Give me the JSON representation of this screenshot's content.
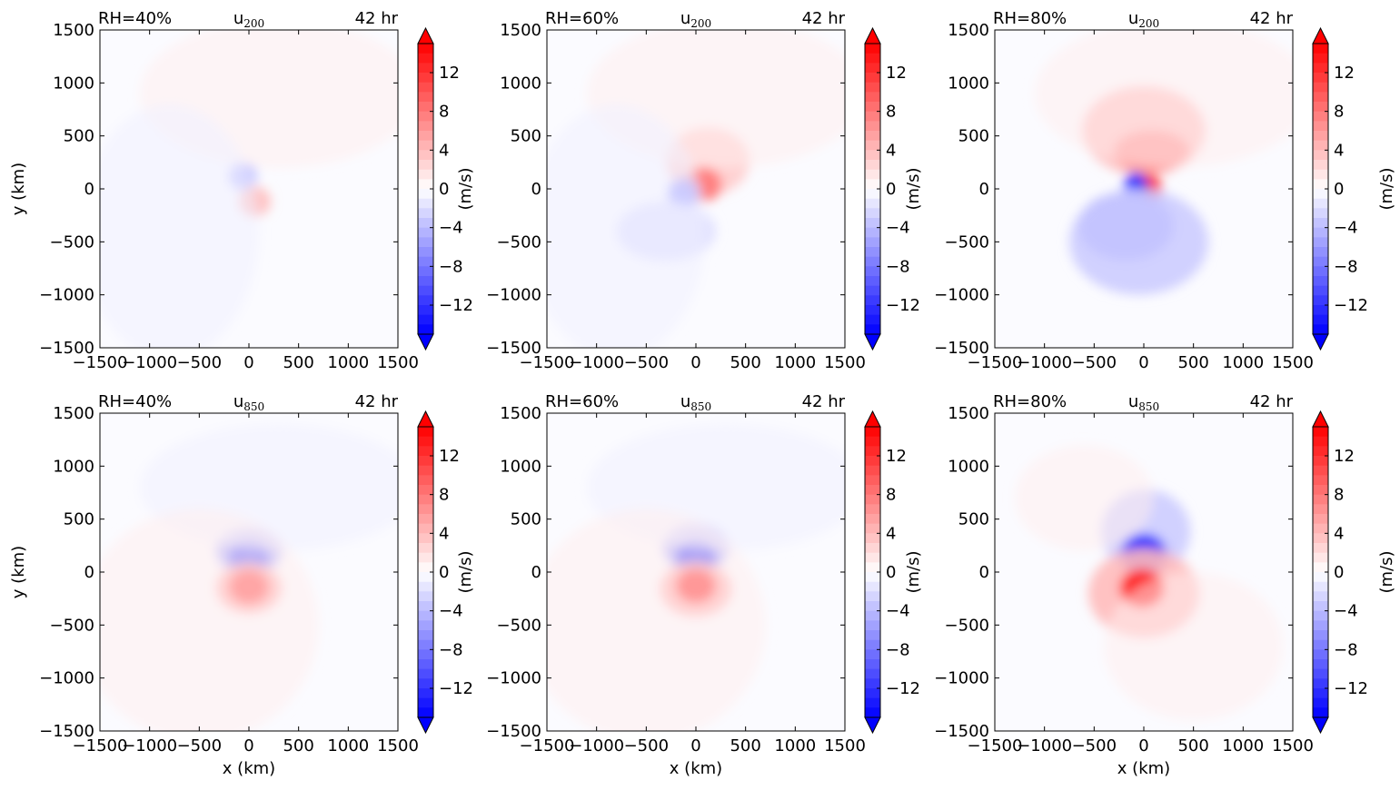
{
  "colors": {
    "positive": "#ff0000",
    "negative": "#0000ff",
    "zero": "#ffffff",
    "axis": "#000000"
  },
  "chart_data": [
    {
      "type": "heatmap",
      "panel": "top-left",
      "title_left": "RH=40%",
      "title_center": "u",
      "title_center_sub": "200",
      "title_right": "42 hr",
      "xlabel": "",
      "ylabel": "y (km)",
      "xlim": [
        -1500,
        1500
      ],
      "ylim": [
        -1500,
        1500
      ],
      "xticks": [
        "−1500",
        "−1000",
        "−500",
        "0",
        "500",
        "1000",
        "1500"
      ],
      "yticks": [
        "1500",
        "1000",
        "500",
        "0",
        "−500",
        "−1000",
        "−1500"
      ],
      "colorbar": {
        "ticks": [
          "12",
          "8",
          "4",
          "0",
          "−4",
          "−8",
          "−12"
        ],
        "label": "",
        "range": [
          -15,
          15
        ],
        "extend": "both"
      },
      "features": [
        {
          "x": -60,
          "y": 120,
          "rx": 140,
          "ry": 130,
          "value": -4
        },
        {
          "x": 60,
          "y": -120,
          "rx": 160,
          "ry": 140,
          "value": 4
        },
        {
          "x": 300,
          "y": 900,
          "rx": 1400,
          "ry": 700,
          "value": 1
        },
        {
          "x": -800,
          "y": -400,
          "rx": 900,
          "ry": 1200,
          "value": -0.8
        }
      ]
    },
    {
      "type": "heatmap",
      "panel": "top-middle",
      "title_left": "RH=60%",
      "title_center": "u",
      "title_center_sub": "200",
      "title_right": "42 hr",
      "xlabel": "",
      "ylabel": "(m/s)",
      "xlim": [
        -1500,
        1500
      ],
      "ylim": [
        -1500,
        1500
      ],
      "xticks": [
        "−1500",
        "−1000",
        "−500",
        "0",
        "500",
        "1000",
        "1500"
      ],
      "yticks": [
        "1500",
        "1000",
        "500",
        "0",
        "−500",
        "−1000",
        "−1500"
      ],
      "colorbar": {
        "ticks": [
          "12",
          "8",
          "4",
          "0",
          "−4",
          "−8",
          "−12"
        ],
        "label": "",
        "range": [
          -15,
          15
        ],
        "extend": "both"
      },
      "features": [
        {
          "x": 120,
          "y": 260,
          "rx": 420,
          "ry": 320,
          "value": 3
        },
        {
          "x": 80,
          "y": 40,
          "rx": 180,
          "ry": 160,
          "value": 8
        },
        {
          "x": -120,
          "y": -40,
          "rx": 160,
          "ry": 140,
          "value": -6
        },
        {
          "x": -300,
          "y": -400,
          "rx": 500,
          "ry": 280,
          "value": -2
        },
        {
          "x": 300,
          "y": 900,
          "rx": 1400,
          "ry": 700,
          "value": 1
        },
        {
          "x": -800,
          "y": -400,
          "rx": 900,
          "ry": 1200,
          "value": -0.8
        }
      ]
    },
    {
      "type": "heatmap",
      "panel": "top-right",
      "title_left": "RH=80%",
      "title_center": "u",
      "title_center_sub": "200",
      "title_right": "42 hr",
      "xlabel": "",
      "ylabel": "(m/s)",
      "xlim": [
        -1500,
        1500
      ],
      "ylim": [
        -1500,
        1500
      ],
      "xticks": [
        "−1500",
        "−1000",
        "−500",
        "0",
        "500",
        "1000",
        "1500"
      ],
      "yticks": [
        "1500",
        "1000",
        "500",
        "0",
        "−500",
        "−1000",
        "−1500"
      ],
      "colorbar": {
        "ticks": [
          "12",
          "8",
          "4",
          "0",
          "−4",
          "−8",
          "−12"
        ],
        "label": "(m/s)",
        "range": [
          -15,
          15
        ],
        "extend": "both"
      },
      "features": [
        {
          "x": 0,
          "y": 550,
          "rx": 620,
          "ry": 420,
          "value": 4
        },
        {
          "x": 80,
          "y": 350,
          "rx": 380,
          "ry": 200,
          "value": 7
        },
        {
          "x": 60,
          "y": 0,
          "rx": 120,
          "ry": 140,
          "value": 15
        },
        {
          "x": -80,
          "y": 20,
          "rx": 120,
          "ry": 140,
          "value": -15
        },
        {
          "x": -180,
          "y": -350,
          "rx": 480,
          "ry": 320,
          "value": -8
        },
        {
          "x": -50,
          "y": -500,
          "rx": 700,
          "ry": 500,
          "value": -3
        },
        {
          "x": 300,
          "y": 900,
          "rx": 1400,
          "ry": 700,
          "value": 1
        }
      ]
    },
    {
      "type": "heatmap",
      "panel": "bottom-left",
      "title_left": "RH=40%",
      "title_center": "u",
      "title_center_sub": "850",
      "title_right": "42 hr",
      "xlabel": "x (km)",
      "ylabel": "y (km)",
      "xlim": [
        -1500,
        1500
      ],
      "ylim": [
        -1500,
        1500
      ],
      "xticks": [
        "−1500",
        "−1000",
        "−500",
        "0",
        "500",
        "1000",
        "1500"
      ],
      "yticks": [
        "1500",
        "1000",
        "500",
        "0",
        "−500",
        "−1000",
        "−1500"
      ],
      "colorbar": {
        "ticks": [
          "12",
          "8",
          "4",
          "0",
          "−4",
          "−8",
          "−12"
        ],
        "label": "",
        "range": [
          -15,
          15
        ],
        "extend": "both"
      },
      "features": [
        {
          "x": 0,
          "y": 200,
          "rx": 330,
          "ry": 220,
          "value": -5
        },
        {
          "x": 0,
          "y": 150,
          "rx": 200,
          "ry": 150,
          "value": -10
        },
        {
          "x": 0,
          "y": -150,
          "rx": 330,
          "ry": 240,
          "value": 5
        },
        {
          "x": 0,
          "y": -140,
          "rx": 200,
          "ry": 160,
          "value": 11
        },
        {
          "x": 300,
          "y": 800,
          "rx": 1400,
          "ry": 600,
          "value": -0.8
        },
        {
          "x": -500,
          "y": -500,
          "rx": 1200,
          "ry": 1100,
          "value": 1
        }
      ]
    },
    {
      "type": "heatmap",
      "panel": "bottom-middle",
      "title_left": "RH=60%",
      "title_center": "u",
      "title_center_sub": "850",
      "title_right": "42 hr",
      "xlabel": "x (km)",
      "ylabel": "(m/s)",
      "xlim": [
        -1500,
        1500
      ],
      "ylim": [
        -1500,
        1500
      ],
      "xticks": [
        "−1500",
        "−1000",
        "−500",
        "0",
        "500",
        "1000",
        "1500"
      ],
      "yticks": [
        "1500",
        "1000",
        "500",
        "0",
        "−500",
        "−1000",
        "−1500"
      ],
      "colorbar": {
        "ticks": [
          "12",
          "8",
          "4",
          "0",
          "−4",
          "−8",
          "−12"
        ],
        "label": "",
        "range": [
          -15,
          15
        ],
        "extend": "both"
      },
      "features": [
        {
          "x": 0,
          "y": 230,
          "rx": 330,
          "ry": 230,
          "value": -5
        },
        {
          "x": 0,
          "y": 150,
          "rx": 200,
          "ry": 150,
          "value": -12
        },
        {
          "x": 0,
          "y": -160,
          "rx": 360,
          "ry": 260,
          "value": 5
        },
        {
          "x": 0,
          "y": -130,
          "rx": 200,
          "ry": 160,
          "value": 13
        },
        {
          "x": 300,
          "y": 800,
          "rx": 1400,
          "ry": 600,
          "value": -0.8
        },
        {
          "x": -500,
          "y": -500,
          "rx": 1200,
          "ry": 1100,
          "value": 1
        }
      ]
    },
    {
      "type": "heatmap",
      "panel": "bottom-right",
      "title_left": "RH=80%",
      "title_center": "u",
      "title_center_sub": "850",
      "title_right": "42 hr",
      "xlabel": "x (km)",
      "ylabel": "(m/s)",
      "xlim": [
        -1500,
        1500
      ],
      "ylim": [
        -1500,
        1500
      ],
      "xticks": [
        "−1500",
        "−1000",
        "−500",
        "0",
        "500",
        "1000",
        "1500"
      ],
      "yticks": [
        "1500",
        "1000",
        "500",
        "0",
        "−500",
        "−1000",
        "−1500"
      ],
      "colorbar": {
        "ticks": [
          "12",
          "8",
          "4",
          "0",
          "−4",
          "−8",
          "−12"
        ],
        "label": "(m/s)",
        "range": [
          -15,
          15
        ],
        "extend": "both"
      },
      "features": [
        {
          "x": 20,
          "y": 380,
          "rx": 450,
          "ry": 400,
          "value": -3
        },
        {
          "x": 0,
          "y": 170,
          "rx": 230,
          "ry": 190,
          "value": -14
        },
        {
          "x": 0,
          "y": -200,
          "rx": 560,
          "ry": 420,
          "value": 4
        },
        {
          "x": -20,
          "y": -150,
          "rx": 220,
          "ry": 180,
          "value": 14
        },
        {
          "x": -600,
          "y": 700,
          "rx": 700,
          "ry": 500,
          "value": 1
        },
        {
          "x": 500,
          "y": -700,
          "rx": 900,
          "ry": 700,
          "value": 1
        }
      ]
    }
  ]
}
